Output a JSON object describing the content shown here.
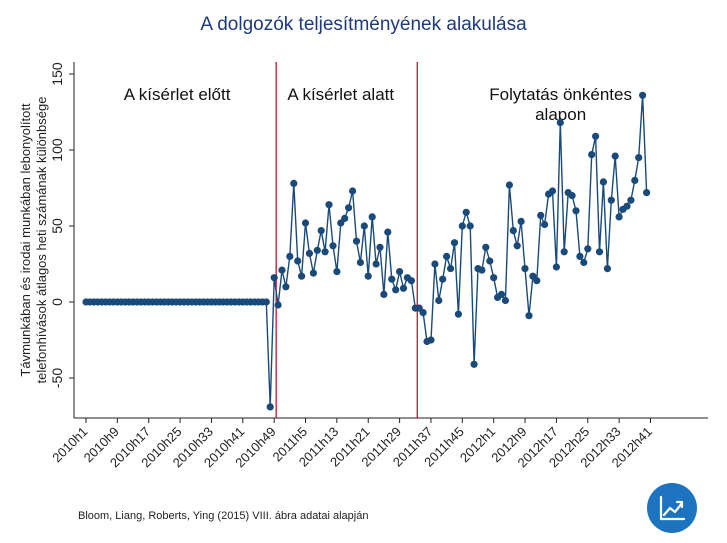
{
  "title": "A dolgozók teljesítményének alakulása",
  "source": "Bloom, Liang, Roberts, Ying (2015) VIII. ábra adatai alapján",
  "logo_icon": "chart-growth-icon",
  "chart_data": {
    "type": "line",
    "ylabel_lines": [
      "Távmunkában és irodai munkában lebonyolított",
      "telefonhívások átlagos heti számának különbsége"
    ],
    "xlabel": "",
    "ylim": [
      -75,
      150
    ],
    "yticks": [
      -50,
      0,
      50,
      100,
      150
    ],
    "ytick_labels": [
      "-50",
      "0",
      "50",
      "100",
      "150"
    ],
    "xticks": [
      "2010h1",
      "2010h9",
      "2010h17",
      "2010h25",
      "2010h33",
      "2010h41",
      "2010h49",
      "2011h5",
      "2011h13",
      "2011h21",
      "2011h29",
      "2011h37",
      "2011h45",
      "2012h1",
      "2012h9",
      "2012h17",
      "2012h25",
      "2012h33",
      "2012h41"
    ],
    "grid": false,
    "line_color": "#1a4a7a",
    "marker_color": "#1a4a7a",
    "divider_color": "#c8102e",
    "dividers": [
      "2010h49",
      "2011h33"
    ],
    "phases": [
      {
        "label_lines": [
          "A kísérlet előtt"
        ]
      },
      {
        "label_lines": [
          "A kísérlet alatt"
        ]
      },
      {
        "label_lines": [
          "Folytatás önkéntes",
          "alapon"
        ]
      }
    ],
    "values": [
      0,
      0,
      0,
      0,
      0,
      0,
      0,
      0,
      0,
      0,
      0,
      0,
      0,
      0,
      0,
      0,
      0,
      0,
      0,
      0,
      0,
      0,
      0,
      0,
      0,
      0,
      0,
      0,
      0,
      0,
      0,
      0,
      0,
      0,
      0,
      0,
      0,
      0,
      0,
      0,
      0,
      0,
      0,
      0,
      0,
      0,
      0,
      -69,
      16,
      -2,
      21,
      10,
      30,
      78,
      27,
      17,
      52,
      32,
      19,
      34,
      47,
      33,
      64,
      37,
      20,
      52,
      55,
      62,
      73,
      40,
      26,
      50,
      17,
      56,
      25,
      36,
      5,
      46,
      15,
      8,
      20,
      9,
      16,
      14,
      -4,
      -4,
      -7,
      -26,
      -25,
      25,
      1,
      15,
      30,
      22,
      39,
      -8,
      50,
      59,
      50,
      -41,
      22,
      21,
      36,
      27,
      16,
      3,
      5,
      1,
      77,
      47,
      37,
      53,
      22,
      -9,
      17,
      14,
      57,
      51,
      71,
      73,
      23,
      118,
      33,
      72,
      70,
      60,
      30,
      26,
      35,
      97,
      109,
      33,
      79,
      22,
      67,
      96,
      56,
      61,
      63,
      67,
      80,
      95,
      136,
      72
    ]
  }
}
